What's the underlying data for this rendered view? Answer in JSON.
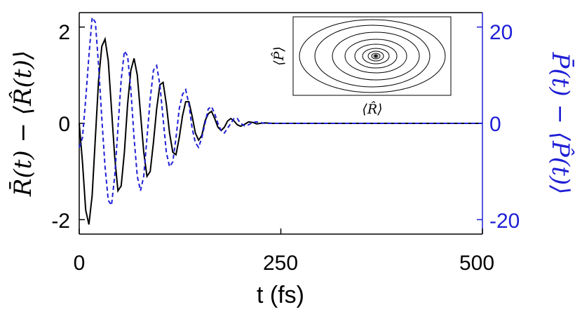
{
  "chart_data": {
    "type": "line",
    "xlabel": "t (fs)",
    "ylabel_left": "R̄(t) − ⟨R̂(t)⟩",
    "ylabel_right": "P̄(t) − ⟨P̂(t)⟩",
    "xlim": [
      0,
      500
    ],
    "ylim_left": [
      -2.3,
      2.3
    ],
    "ylim_right": [
      -23,
      23
    ],
    "xticks": [
      "0",
      "250",
      "500"
    ],
    "yticks_left": [
      "2",
      "0",
      "-2"
    ],
    "yticks_right": [
      "20",
      "0",
      "-20"
    ],
    "colors": {
      "left_axis": "#000000",
      "right_axis": "#1f1fd6"
    },
    "series": [
      {
        "axis": "left",
        "style": "solid",
        "color": "#000000",
        "points": [
          [
            0,
            0
          ],
          [
            4,
            -0.8
          ],
          [
            8,
            -1.8
          ],
          [
            12,
            -2.1
          ],
          [
            16,
            -1.5
          ],
          [
            20,
            -0.3
          ],
          [
            24,
            0.9
          ],
          [
            28,
            1.6
          ],
          [
            32,
            1.75
          ],
          [
            36,
            1.3
          ],
          [
            40,
            0.3
          ],
          [
            44,
            -0.7
          ],
          [
            48,
            -1.4
          ],
          [
            52,
            -1.3
          ],
          [
            56,
            -0.6
          ],
          [
            60,
            0.4
          ],
          [
            64,
            1.1
          ],
          [
            68,
            1.35
          ],
          [
            72,
            1.0
          ],
          [
            76,
            0.2
          ],
          [
            80,
            -0.6
          ],
          [
            84,
            -1.1
          ],
          [
            88,
            -1.0
          ],
          [
            92,
            -0.4
          ],
          [
            96,
            0.3
          ],
          [
            100,
            0.8
          ],
          [
            104,
            0.85
          ],
          [
            108,
            0.4
          ],
          [
            112,
            -0.2
          ],
          [
            116,
            -0.6
          ],
          [
            120,
            -0.65
          ],
          [
            124,
            -0.3
          ],
          [
            128,
            0.15
          ],
          [
            132,
            0.45
          ],
          [
            136,
            0.45
          ],
          [
            140,
            0.15
          ],
          [
            144,
            -0.2
          ],
          [
            148,
            -0.35
          ],
          [
            152,
            -0.25
          ],
          [
            156,
            0.05
          ],
          [
            160,
            0.2
          ],
          [
            164,
            0.25
          ],
          [
            168,
            0.1
          ],
          [
            172,
            -0.08
          ],
          [
            176,
            -0.15
          ],
          [
            180,
            -0.08
          ],
          [
            184,
            0.05
          ],
          [
            188,
            0.1
          ],
          [
            192,
            0.05
          ],
          [
            196,
            -0.03
          ],
          [
            200,
            -0.06
          ],
          [
            205,
            -0.02
          ],
          [
            210,
            0.03
          ],
          [
            215,
            0.02
          ],
          [
            220,
            -0.01
          ],
          [
            230,
            0.01
          ],
          [
            240,
            0
          ],
          [
            300,
            0
          ],
          [
            400,
            0
          ],
          [
            500,
            0
          ]
        ]
      },
      {
        "axis": "right",
        "style": "dashed",
        "color": "#1f1fd6",
        "points": [
          [
            0,
            -5
          ],
          [
            4,
            -3
          ],
          [
            8,
            5
          ],
          [
            12,
            14
          ],
          [
            16,
            22
          ],
          [
            20,
            21
          ],
          [
            24,
            12
          ],
          [
            28,
            1
          ],
          [
            32,
            -9
          ],
          [
            36,
            -16
          ],
          [
            40,
            -17
          ],
          [
            44,
            -11
          ],
          [
            48,
            -1
          ],
          [
            52,
            9
          ],
          [
            56,
            15
          ],
          [
            60,
            14
          ],
          [
            64,
            7
          ],
          [
            68,
            -3
          ],
          [
            72,
            -11
          ],
          [
            76,
            -14
          ],
          [
            80,
            -11
          ],
          [
            84,
            -3
          ],
          [
            88,
            5
          ],
          [
            92,
            11
          ],
          [
            96,
            12
          ],
          [
            100,
            8
          ],
          [
            104,
            1
          ],
          [
            108,
            -6
          ],
          [
            112,
            -9
          ],
          [
            116,
            -8
          ],
          [
            120,
            -3
          ],
          [
            124,
            3
          ],
          [
            128,
            6
          ],
          [
            132,
            7
          ],
          [
            136,
            4
          ],
          [
            140,
            -1
          ],
          [
            144,
            -4
          ],
          [
            148,
            -5
          ],
          [
            152,
            -3
          ],
          [
            156,
            0
          ],
          [
            160,
            3
          ],
          [
            164,
            3.5
          ],
          [
            168,
            2
          ],
          [
            172,
            0
          ],
          [
            176,
            -1.5
          ],
          [
            180,
            -2
          ],
          [
            184,
            -1
          ],
          [
            188,
            0
          ],
          [
            192,
            1
          ],
          [
            196,
            1
          ],
          [
            200,
            0
          ],
          [
            205,
            -0.5
          ],
          [
            210,
            -0.3
          ],
          [
            215,
            0.2
          ],
          [
            220,
            0.3
          ],
          [
            230,
            0
          ],
          [
            300,
            0
          ],
          [
            400,
            0
          ],
          [
            500,
            0
          ]
        ]
      }
    ],
    "inset": {
      "type": "line",
      "description_axes": {
        "xlabel": "⟨R̂⟩",
        "ylabel": "⟨P̂⟩"
      },
      "curve": "phase-space spiral converging to center"
    }
  }
}
